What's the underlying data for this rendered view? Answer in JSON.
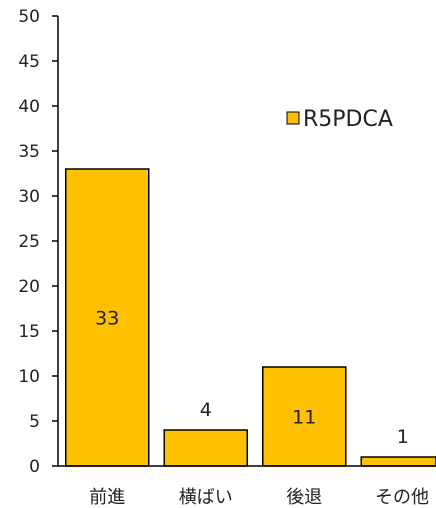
{
  "chart_data": {
    "type": "bar",
    "categories": [
      "前進",
      "横ばい",
      "後退",
      "その他"
    ],
    "series": [
      {
        "name": "R5PDCA",
        "values": [
          33,
          4,
          11,
          1
        ],
        "color": "#FFC000"
      }
    ],
    "data_labels": [
      "33",
      "4",
      "11",
      "1"
    ],
    "yticks": [
      "0",
      "5",
      "10",
      "15",
      "20",
      "25",
      "30",
      "35",
      "40",
      "45",
      "50"
    ],
    "ylim": [
      0,
      50
    ],
    "title": "",
    "xlabel": "",
    "ylabel": "",
    "grid": false,
    "legend_position": "top-right",
    "colors": {
      "bar": "#FFC000",
      "bar_outline": "#000000",
      "axis": "#000000",
      "text": "#222222"
    }
  }
}
